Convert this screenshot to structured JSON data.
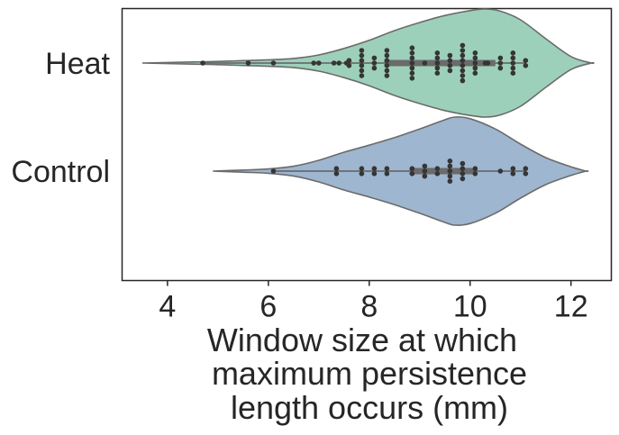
{
  "chart_data": {
    "type": "violin",
    "title": "",
    "xlabel_lines": [
      "Window size at which",
      "maximum persistence",
      "length occurs (mm)"
    ],
    "ylabel": "",
    "xlim": [
      3.1,
      12.8
    ],
    "xticks": [
      4,
      6,
      8,
      10,
      12
    ],
    "tick_labels": [
      "4",
      "6",
      "8",
      "10",
      "12"
    ],
    "grid": false,
    "legend": "none",
    "categories": [
      "Heat",
      "Control"
    ],
    "series": [
      {
        "category": "Heat",
        "color": "#9dd0ba",
        "kde_min": 3.5,
        "kde_max": 12.4,
        "density": [
          [
            3.5,
            0.0
          ],
          [
            4.0,
            0.01
          ],
          [
            4.5,
            0.02
          ],
          [
            5.0,
            0.03
          ],
          [
            5.5,
            0.045
          ],
          [
            6.0,
            0.06
          ],
          [
            6.5,
            0.085
          ],
          [
            7.0,
            0.15
          ],
          [
            7.5,
            0.27
          ],
          [
            8.0,
            0.42
          ],
          [
            8.5,
            0.6
          ],
          [
            9.0,
            0.75
          ],
          [
            9.5,
            0.88
          ],
          [
            10.0,
            0.97
          ],
          [
            10.3,
            1.0
          ],
          [
            10.6,
            0.96
          ],
          [
            11.0,
            0.8
          ],
          [
            11.5,
            0.45
          ],
          [
            12.0,
            0.12
          ],
          [
            12.4,
            0.0
          ]
        ],
        "quartiles": [
          8.3,
          9.8,
          10.5
        ],
        "whisker": [
          4.7,
          11.1
        ],
        "points": [
          4.7,
          5.6,
          6.1,
          6.9,
          7.0,
          7.3,
          7.4,
          7.55,
          7.6,
          7.6,
          7.85,
          7.85,
          7.85,
          7.85,
          7.85,
          7.85,
          8.1,
          8.1,
          8.1,
          8.35,
          8.35,
          8.35,
          8.35,
          8.35,
          8.35,
          8.85,
          8.85,
          8.85,
          8.85,
          8.85,
          8.85,
          8.85,
          9.1,
          9.35,
          9.35,
          9.35,
          9.35,
          9.35,
          9.6,
          9.6,
          9.6,
          9.6,
          9.85,
          9.85,
          9.85,
          9.85,
          9.85,
          9.85,
          9.85,
          9.85,
          10.1,
          10.1,
          10.1,
          10.1,
          10.1,
          10.3,
          10.35,
          10.6,
          10.6,
          10.6,
          10.85,
          10.85,
          10.85,
          10.85,
          10.85,
          11.1,
          11.1
        ]
      },
      {
        "category": "Control",
        "color": "#9eb6cf",
        "kde_min": 4.9,
        "kde_max": 12.3,
        "density": [
          [
            4.9,
            0.0
          ],
          [
            5.5,
            0.02
          ],
          [
            6.0,
            0.04
          ],
          [
            6.5,
            0.09
          ],
          [
            7.0,
            0.2
          ],
          [
            7.5,
            0.35
          ],
          [
            8.0,
            0.48
          ],
          [
            8.5,
            0.62
          ],
          [
            9.0,
            0.78
          ],
          [
            9.5,
            0.95
          ],
          [
            9.7,
            1.0
          ],
          [
            10.0,
            0.97
          ],
          [
            10.5,
            0.78
          ],
          [
            11.0,
            0.5
          ],
          [
            11.5,
            0.25
          ],
          [
            12.0,
            0.08
          ],
          [
            12.3,
            0.0
          ]
        ],
        "quartiles": [
          8.8,
          9.7,
          10.1
        ],
        "whisker": [
          6.1,
          11.1
        ],
        "points": [
          6.1,
          7.35,
          7.35,
          7.85,
          7.85,
          8.1,
          8.1,
          8.35,
          8.35,
          8.85,
          8.85,
          9.1,
          9.1,
          9.1,
          9.35,
          9.35,
          9.6,
          9.6,
          9.6,
          9.6,
          9.6,
          9.85,
          9.85,
          9.85,
          9.85,
          10.1,
          10.1,
          10.6,
          10.85,
          10.85,
          11.1,
          11.1
        ]
      }
    ]
  }
}
